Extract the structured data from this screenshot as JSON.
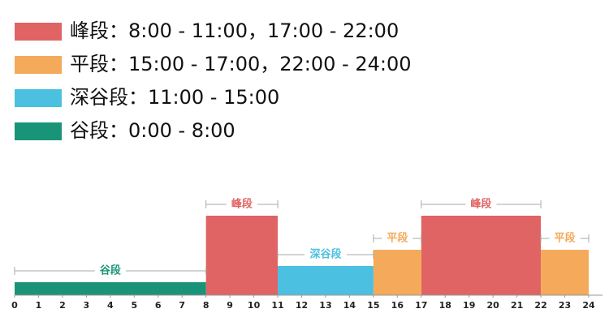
{
  "chart_data": {
    "type": "tariff-periods",
    "xlim": [
      0,
      24
    ],
    "xticks": [
      0,
      1,
      2,
      3,
      4,
      5,
      6,
      7,
      8,
      9,
      10,
      11,
      12,
      13,
      14,
      15,
      16,
      17,
      18,
      19,
      20,
      21,
      22,
      23,
      24
    ],
    "series": [
      {
        "name": "峰段",
        "label": "峰段：8:00 - 11:00，17:00 - 22:00",
        "color": "#e06464",
        "ranges": [
          [
            8,
            11
          ],
          [
            17,
            22
          ]
        ]
      },
      {
        "name": "平段",
        "label": "平段：15:00 - 17:00，22:00 - 24:00",
        "color": "#f5a95a",
        "ranges": [
          [
            15,
            17
          ],
          [
            22,
            24
          ]
        ]
      },
      {
        "name": "深谷段",
        "label": "深谷段：11:00 - 15:00",
        "color": "#4cc0e0",
        "ranges": [
          [
            11,
            15
          ]
        ]
      },
      {
        "name": "谷段",
        "label": "谷段：0:00 - 8:00",
        "color": "#1a9478",
        "ranges": [
          [
            0,
            8
          ]
        ]
      }
    ]
  }
}
